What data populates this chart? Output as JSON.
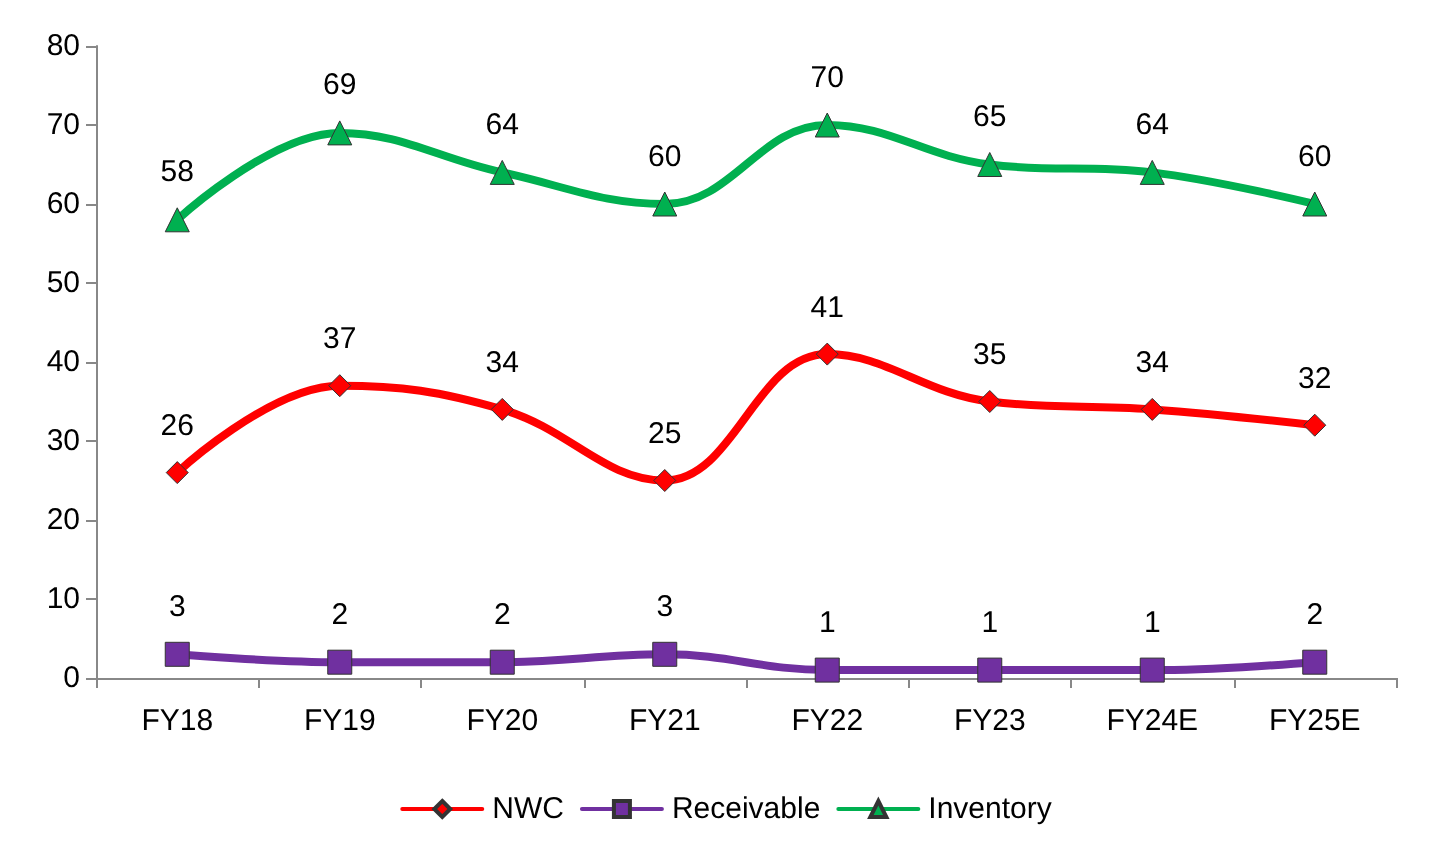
{
  "chart_data": {
    "type": "line",
    "categories": [
      "FY18",
      "FY19",
      "FY20",
      "FY21",
      "FY22",
      "FY23",
      "FY24E",
      "FY25E"
    ],
    "series": [
      {
        "name": "NWC",
        "color": "#ff0000",
        "marker": "diamond",
        "values": [
          26,
          37,
          34,
          25,
          41,
          35,
          34,
          32
        ]
      },
      {
        "name": "Receivable",
        "color": "#7030a0",
        "marker": "square",
        "values": [
          3,
          2,
          2,
          3,
          1,
          1,
          1,
          2
        ]
      },
      {
        "name": "Inventory",
        "color": "#00b050",
        "marker": "triangle",
        "values": [
          58,
          69,
          64,
          60,
          70,
          65,
          64,
          60
        ]
      }
    ],
    "ylim": [
      0,
      80
    ],
    "yticks": [
      0,
      10,
      20,
      30,
      40,
      50,
      60,
      70,
      80
    ],
    "grid": false,
    "legend": "bottom",
    "data_labels": true,
    "line_style": "solid"
  }
}
